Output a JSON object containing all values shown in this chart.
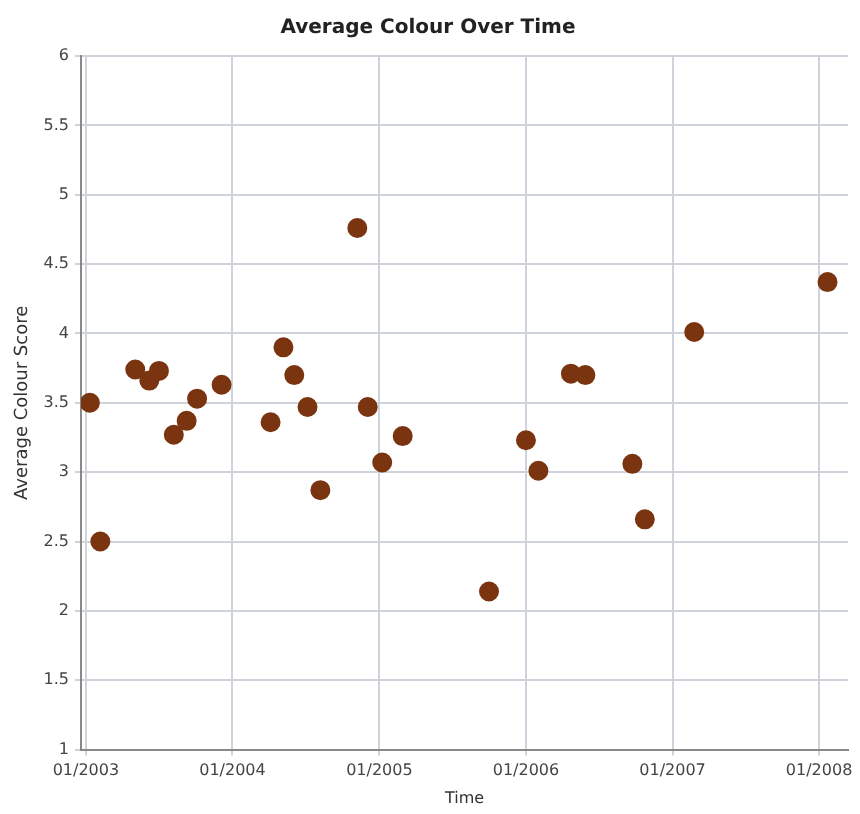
{
  "chart_data": {
    "type": "scatter",
    "title": "Average Colour Over Time",
    "xlabel": "Time",
    "ylabel": "Average Colour Score",
    "x": [
      "2003-01-11",
      "2003-02-06",
      "2003-05-04",
      "2003-06-08",
      "2003-07-02",
      "2003-08-08",
      "2003-09-09",
      "2003-10-05",
      "2003-12-05",
      "2004-04-05",
      "2004-05-07",
      "2004-06-03",
      "2004-07-06",
      "2004-08-07",
      "2004-11-07",
      "2004-12-03",
      "2005-01-08",
      "2005-02-28",
      "2005-10-01",
      "2006-01-01",
      "2006-02-01",
      "2006-04-23",
      "2006-05-29",
      "2006-09-23",
      "2006-10-24",
      "2007-02-24",
      "2008-01-22"
    ],
    "series": [
      {
        "color": "#7a3510",
        "values": [
          3.5,
          2.5,
          3.74,
          3.66,
          3.73,
          3.27,
          3.37,
          3.53,
          3.63,
          3.36,
          3.9,
          3.7,
          3.47,
          2.87,
          4.76,
          3.47,
          3.07,
          3.26,
          2.14,
          3.23,
          3.01,
          3.71,
          3.7,
          3.06,
          2.66,
          4.01,
          4.37
        ]
      }
    ],
    "xlim": [
      "2002-12-20",
      "2008-03-13"
    ],
    "xticks": [
      {
        "value": "2003-01",
        "label": "01/2003"
      },
      {
        "value": "2004-01",
        "label": "01/2004"
      },
      {
        "value": "2005-01",
        "label": "01/2005"
      },
      {
        "value": "2006-01",
        "label": "01/2006"
      },
      {
        "value": "2007-01",
        "label": "01/2007"
      },
      {
        "value": "2008-01",
        "label": "01/2008"
      }
    ],
    "ylim": [
      1,
      6
    ],
    "yticks": [
      1,
      1.5,
      2,
      2.5,
      3,
      3.5,
      4,
      4.5,
      5,
      5.5,
      6
    ],
    "grid": true,
    "marker": "circle",
    "legend": false
  }
}
